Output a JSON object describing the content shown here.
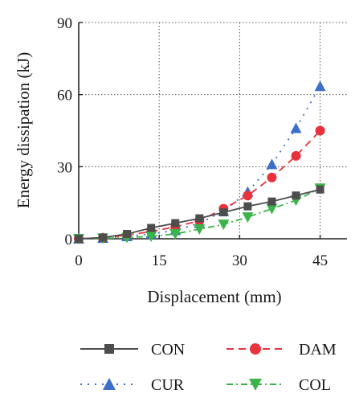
{
  "chart_data": {
    "type": "line",
    "xlabel": "Displacement (mm)",
    "ylabel": "Energy dissipation (kJ)",
    "xlim": [
      0,
      50
    ],
    "ylim": [
      0,
      90
    ],
    "xticks": [
      0,
      15,
      30,
      45
    ],
    "yticks": [
      0,
      30,
      60,
      90
    ],
    "x_tick_labels": [
      "0",
      "15",
      "30",
      "45"
    ],
    "y_tick_labels": [
      "0",
      "30",
      "60",
      "90"
    ],
    "grid": "dotted major gridlines",
    "legend_position": "bottom",
    "series": [
      {
        "name": "CON",
        "color": "#4d4d4d",
        "marker": "square",
        "line_style": "solid",
        "x": [
          0,
          4.5,
          9,
          13.5,
          18,
          22.5,
          27,
          31.5,
          36,
          40.5,
          45
        ],
        "y": [
          0,
          0.5,
          2,
          4.5,
          6.5,
          8.5,
          11,
          13.5,
          15.5,
          18,
          20.5
        ]
      },
      {
        "name": "DAM",
        "color": "#e8323c",
        "marker": "circle",
        "line_style": "dashed",
        "x": [
          0,
          4.5,
          9,
          13.5,
          18,
          22.5,
          27,
          31.5,
          36,
          40.5,
          45
        ],
        "y": [
          0,
          0.4,
          1.5,
          3,
          5,
          7.5,
          12.5,
          18,
          25.5,
          34.5,
          45
        ]
      },
      {
        "name": "CUR",
        "color": "#3b6fc9",
        "marker": "triangle-up",
        "line_style": "dotted",
        "x": [
          0,
          4.5,
          9,
          13.5,
          18,
          22.5,
          27,
          31.5,
          36,
          40.5,
          45
        ],
        "y": [
          0,
          0.3,
          1,
          2,
          3.5,
          6.5,
          11.5,
          19.5,
          31,
          46,
          63.5
        ]
      },
      {
        "name": "COL",
        "color": "#3bb54a",
        "marker": "triangle-down",
        "line_style": "dash-dot",
        "x": [
          0,
          4.5,
          9,
          13.5,
          18,
          22.5,
          27,
          31.5,
          36,
          40.5,
          45
        ],
        "y": [
          0,
          0.2,
          0.5,
          1,
          2,
          4,
          6,
          9,
          12.5,
          16,
          21
        ]
      }
    ]
  }
}
